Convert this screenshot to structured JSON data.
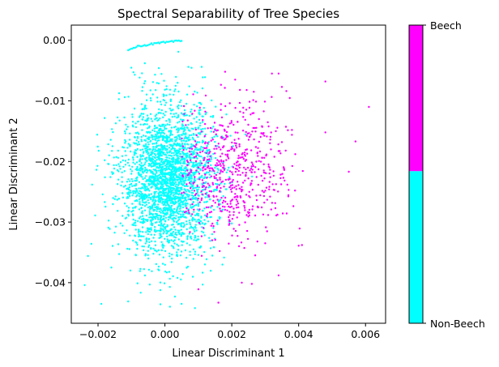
{
  "chart_data": {
    "type": "scatter",
    "title": "Spectral Separability of Tree Species",
    "xlabel": "Linear Discriminant 1",
    "ylabel": "Linear Discriminant 2",
    "xlim": [
      -0.0028,
      0.0066
    ],
    "ylim": [
      -0.0467,
      0.0025
    ],
    "x_ticks": [
      -0.002,
      0.0,
      0.002,
      0.004,
      0.006
    ],
    "x_tick_labels": [
      "−0.002",
      "0.000",
      "0.002",
      "0.004",
      "0.006"
    ],
    "y_ticks": [
      0.0,
      -0.01,
      -0.02,
      -0.03,
      -0.04
    ],
    "y_tick_labels": [
      "0.00",
      "−0.01",
      "−0.02",
      "−0.03",
      "−0.04"
    ],
    "grid": false,
    "colorbar": {
      "labels": [
        "Beech",
        "Non-Beech"
      ],
      "colors": [
        "#ff00ff",
        "#00ffff"
      ],
      "split_fraction": 0.49
    },
    "classes": [
      {
        "label": "Non-Beech",
        "color": "#00ffff",
        "cluster": {
          "center": [
            0.0001,
            -0.023
          ],
          "spread": [
            0.0007,
            0.0062
          ],
          "count": 2600,
          "x_range": [
            -0.0024,
            0.0028
          ],
          "y_range": [
            -0.0445,
            -0.004
          ]
        },
        "arc": {
          "x_range": [
            -0.0011,
            0.0005
          ],
          "y_range": [
            -0.0017,
            -0.0001
          ],
          "count": 40
        },
        "points": [
          [
            -0.0024,
            -0.0404
          ],
          [
            -0.0023,
            -0.0356
          ],
          [
            -0.0022,
            -0.0336
          ],
          [
            -0.0019,
            -0.0435
          ],
          [
            -0.0018,
            -0.0267
          ],
          [
            -0.0017,
            -0.0204
          ],
          [
            -0.0016,
            -0.0375
          ],
          [
            -0.0015,
            -0.0262
          ],
          [
            -0.0014,
            -0.0194
          ],
          [
            -0.0012,
            -0.0094
          ],
          [
            -0.0011,
            -0.0431
          ],
          [
            -0.0009,
            -0.0057
          ],
          [
            -0.0006,
            -0.0038
          ],
          [
            0.0003,
            -0.0423
          ],
          [
            0.0005,
            -0.0435
          ],
          [
            0.0009,
            -0.0442
          ],
          [
            0.0011,
            -0.0044
          ],
          [
            0.0012,
            -0.0061
          ],
          [
            0.0004,
            -0.0019
          ],
          [
            0.0007,
            -0.0044
          ]
        ]
      },
      {
        "label": "Beech",
        "color": "#ff00ff",
        "cluster": {
          "center": [
            0.0019,
            -0.0215
          ],
          "spread": [
            0.0009,
            0.0055
          ],
          "count": 650,
          "x_range": [
            0.0005,
            0.0042
          ],
          "y_range": [
            -0.039,
            -0.007
          ]
        },
        "points": [
          [
            0.0061,
            -0.011
          ],
          [
            0.0057,
            -0.0167
          ],
          [
            0.0055,
            -0.0217
          ],
          [
            0.0048,
            -0.0068
          ],
          [
            0.0048,
            -0.0152
          ],
          [
            0.0041,
            -0.0338
          ],
          [
            0.004,
            -0.0339
          ],
          [
            0.0038,
            -0.0148
          ],
          [
            0.0037,
            -0.0247
          ],
          [
            0.0035,
            -0.0077
          ],
          [
            0.0034,
            -0.0055
          ],
          [
            0.0034,
            -0.0388
          ],
          [
            0.0032,
            -0.0055
          ],
          [
            0.003,
            -0.0335
          ],
          [
            0.0027,
            -0.0355
          ],
          [
            0.0026,
            -0.0402
          ],
          [
            0.0023,
            -0.04
          ],
          [
            0.0021,
            -0.0065
          ],
          [
            0.0018,
            -0.0052
          ],
          [
            0.0016,
            -0.0433
          ],
          [
            0.001,
            -0.0411
          ]
        ]
      }
    ]
  }
}
